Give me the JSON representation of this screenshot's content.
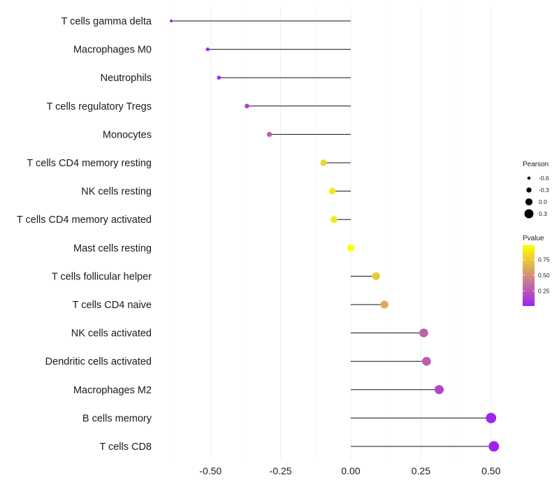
{
  "chart_data": {
    "type": "lollipop",
    "title": "",
    "xlabel": "",
    "ylabel": "",
    "xlim": [
      -0.7,
      0.55
    ],
    "x_ticks": [
      -0.5,
      -0.25,
      0.0,
      0.25,
      0.5
    ],
    "x_tick_labels": [
      "-0.50",
      "-0.25",
      "0.00",
      "0.25",
      "0.50"
    ],
    "categories": [
      "T cells gamma delta",
      "Macrophages M0",
      "Neutrophils",
      "T cells regulatory  Tregs ",
      "Monocytes",
      "T cells CD4 memory resting",
      "NK cells resting",
      "T cells CD4 memory activated",
      "Mast cells resting",
      "T cells follicular helper",
      "T cells CD4 naive",
      "NK cells activated",
      "Dendritic cells activated",
      "Macrophages M2",
      "B cells memory",
      "T cells CD8"
    ],
    "values": [
      -0.64,
      -0.51,
      -0.47,
      -0.37,
      -0.29,
      -0.097,
      -0.066,
      -0.06,
      0.0,
      0.09,
      0.12,
      0.26,
      0.27,
      0.315,
      0.5,
      0.51
    ],
    "pvalues": [
      0.02,
      0.05,
      0.06,
      0.15,
      0.3,
      0.8,
      0.88,
      0.88,
      0.98,
      0.75,
      0.62,
      0.3,
      0.28,
      0.18,
      0.03,
      0.02
    ],
    "legend": {
      "size_title": "Pearson",
      "size_items": [
        {
          "label": "-0.6",
          "value": -0.6
        },
        {
          "label": "-0.3",
          "value": -0.3
        },
        {
          "label": "0.0",
          "value": 0.0
        },
        {
          "label": "0.3",
          "value": 0.3
        }
      ],
      "color_title": "Pvalue",
      "color_ticks": [
        {
          "label": "0.75",
          "value": 0.75
        },
        {
          "label": "0.50",
          "value": 0.5
        },
        {
          "label": "0.25",
          "value": 0.25
        }
      ],
      "color_range": [
        0.01,
        0.98
      ],
      "color_low": "#a020f0",
      "color_high": "#ffff00"
    },
    "grid": "vertical"
  }
}
